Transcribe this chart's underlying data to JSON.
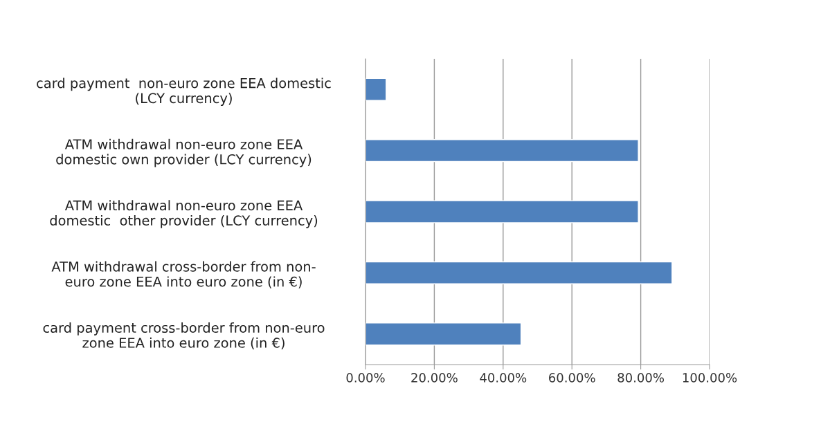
{
  "chart_data": {
    "type": "bar",
    "orientation": "horizontal",
    "categories": [
      "card payment  non-euro zone EEA domestic\n(LCY currency)",
      "ATM withdrawal non-euro zone EEA\ndomestic own provider (LCY currency)",
      "ATM withdrawal non-euro zone EEA\ndomestic  other provider (LCY currency)",
      "ATM withdrawal cross-border from non-\neuro zone EEA into euro zone (in €)",
      "card payment cross-border from non-euro\nzone EEA into euro zone (in €)"
    ],
    "values": [
      6.0,
      79.3,
      79.3,
      89.1,
      45.2
    ],
    "color": "#4f81bd",
    "xlim": [
      0,
      100
    ],
    "xticks": [
      {
        "value": 0,
        "label": "0.00%"
      },
      {
        "value": 20,
        "label": "20.00%"
      },
      {
        "value": 40,
        "label": "40.00%"
      },
      {
        "value": 60,
        "label": "60.00%"
      },
      {
        "value": 80,
        "label": "80.00%"
      },
      {
        "value": 100,
        "label": "100.00%"
      }
    ],
    "grid": "x",
    "legend": false
  }
}
